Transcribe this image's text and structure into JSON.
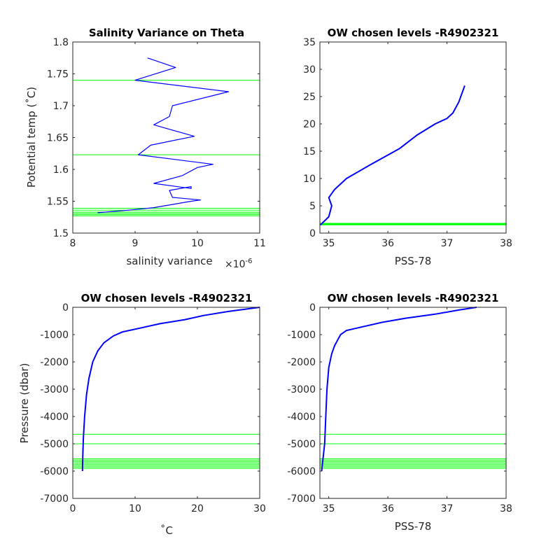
{
  "chart_data": [
    {
      "type": "line",
      "title": "Salinity Variance on Theta",
      "xlabel": "salinity variance",
      "xlabel_exponent": "×10",
      "xlabel_exponent_power": "-6",
      "ylabel": "Potential temp (˚C)",
      "xlim": [
        8,
        11
      ],
      "ylim": [
        1.5,
        1.8
      ],
      "xticks": [
        8,
        9,
        10,
        11
      ],
      "xtick_labels": [
        "8",
        "9",
        "10",
        "11"
      ],
      "yticks": [
        1.5,
        1.55,
        1.6,
        1.65,
        1.7,
        1.75,
        1.8
      ],
      "ytick_labels": [
        "1.5",
        "1.55",
        "1.6",
        "1.65",
        "1.7",
        "1.75",
        "1.8"
      ],
      "grid": false,
      "series": [
        {
          "color": "#0000ff",
          "x": [
            8.4,
            8.9,
            9.3,
            9.9,
            10.05,
            9.6,
            9.55,
            9.9,
            9.9,
            9.3,
            9.75,
            10.0,
            10.25,
            9.05,
            9.25,
            9.95,
            9.3,
            9.55,
            9.6,
            10.5,
            9.0,
            9.65,
            9.2
          ],
          "y": [
            1.532,
            1.536,
            1.54,
            1.55,
            1.552,
            1.556,
            1.567,
            1.573,
            1.57,
            1.578,
            1.59,
            1.603,
            1.608,
            1.623,
            1.638,
            1.652,
            1.67,
            1.683,
            1.7,
            1.722,
            1.74,
            1.76,
            1.775
          ]
        }
      ],
      "hlines": {
        "color": "#00ff00",
        "values": [
          1.74,
          1.623,
          1.539,
          1.536,
          1.533,
          1.531,
          1.529,
          1.527
        ]
      }
    },
    {
      "type": "line",
      "title": "OW chosen levels -R4902321",
      "xlabel": "PSS-78",
      "ylabel": "",
      "xlim": [
        34.85,
        38
      ],
      "ylim": [
        0,
        35
      ],
      "xticks": [
        35,
        36,
        37,
        38
      ],
      "xtick_labels": [
        "35",
        "36",
        "37",
        "38"
      ],
      "yticks": [
        0,
        5,
        10,
        15,
        20,
        25,
        30,
        35
      ],
      "ytick_labels": [
        "0",
        "5",
        "10",
        "15",
        "20",
        "25",
        "30",
        "35"
      ],
      "grid": false,
      "series": [
        {
          "color": "#0000ff",
          "x": [
            34.86,
            35.0,
            35.05,
            35.0,
            35.1,
            35.3,
            35.7,
            36.2,
            36.5,
            36.8,
            37.0,
            37.1,
            37.2,
            37.3
          ],
          "y": [
            1.5,
            3.0,
            5.0,
            6.5,
            8.0,
            10.0,
            12.5,
            15.5,
            18.0,
            20.0,
            21.0,
            22.0,
            24.0,
            27.0
          ]
        }
      ],
      "hlines": {
        "color": "#00ff00",
        "values": [
          1.8,
          1.7,
          1.6,
          1.5
        ]
      }
    },
    {
      "type": "line",
      "title": "OW chosen levels -R4902321",
      "xlabel": "˚C",
      "ylabel": "Pressure (dbar)",
      "xlim": [
        0,
        30
      ],
      "ylim": [
        -7000,
        0
      ],
      "xticks": [
        0,
        10,
        20,
        30
      ],
      "xtick_labels": [
        "0",
        "10",
        "20",
        "30"
      ],
      "yticks": [
        -7000,
        -6000,
        -5000,
        -4000,
        -3000,
        -2000,
        -1000,
        0
      ],
      "ytick_labels": [
        "-7000",
        "-6000",
        "-5000",
        "-4000",
        "-3000",
        "-2000",
        "-1000",
        "0"
      ],
      "grid": false,
      "series": [
        {
          "color": "#0000ff",
          "x": [
            30,
            25,
            21,
            18,
            14,
            11,
            8,
            6.5,
            5,
            4,
            3.2,
            2.6,
            2.2,
            1.9,
            1.7,
            1.6,
            1.55
          ],
          "y": [
            0,
            -150,
            -300,
            -450,
            -600,
            -750,
            -900,
            -1050,
            -1300,
            -1600,
            -2000,
            -2600,
            -3200,
            -4000,
            -4800,
            -5500,
            -6000
          ]
        }
      ],
      "hlines": {
        "color": "#00ff00",
        "values": [
          -4650,
          -5000,
          -5550,
          -5600,
          -5650,
          -5700,
          -5750,
          -5800,
          -5850,
          -5900
        ]
      }
    },
    {
      "type": "line",
      "title": "OW chosen levels -R4902321",
      "xlabel": "PSS-78",
      "ylabel": "",
      "xlim": [
        34.85,
        38
      ],
      "ylim": [
        -7000,
        0
      ],
      "xticks": [
        35,
        36,
        37,
        38
      ],
      "xtick_labels": [
        "35",
        "36",
        "37",
        "38"
      ],
      "yticks": [
        -7000,
        -6000,
        -5000,
        -4000,
        -3000,
        -2000,
        -1000,
        0
      ],
      "ytick_labels": [
        "-7000",
        "-6000",
        "-5000",
        "-4000",
        "-3000",
        "-2000",
        "-1000",
        "0"
      ],
      "grid": false,
      "series": [
        {
          "color": "#0000ff",
          "x": [
            37.5,
            37.2,
            36.8,
            36.3,
            35.9,
            35.6,
            35.3,
            35.2,
            35.15,
            35.1,
            35.05,
            35.0,
            34.97,
            34.95,
            34.93,
            34.9,
            34.88
          ],
          "y": [
            0,
            -100,
            -250,
            -400,
            -550,
            -700,
            -850,
            -1000,
            -1200,
            -1400,
            -1700,
            -2200,
            -3000,
            -4000,
            -5000,
            -5600,
            -6000
          ]
        }
      ],
      "hlines": {
        "color": "#00ff00",
        "values": [
          -4650,
          -5000,
          -5550,
          -5600,
          -5650,
          -5700,
          -5750,
          -5800,
          -5850,
          -5900
        ]
      }
    }
  ]
}
